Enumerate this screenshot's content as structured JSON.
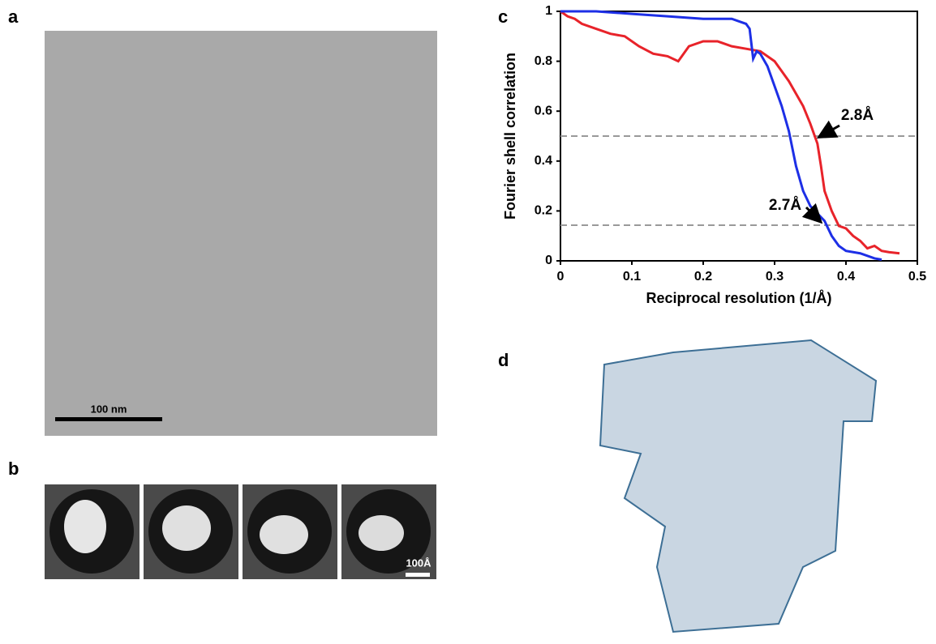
{
  "panels": {
    "a": {
      "label": "a",
      "scale_bar": "100 nm"
    },
    "b": {
      "label": "b",
      "scale_bar": "100Å"
    },
    "c": {
      "label": "c"
    },
    "d": {
      "label": "d"
    }
  },
  "chart_data": {
    "type": "line",
    "xlabel": "Reciprocal resolution (1/Å)",
    "ylabel": "Fourier shell correlation",
    "xlim": [
      0,
      0.5
    ],
    "ylim": [
      0,
      1
    ],
    "xticks": [
      0,
      0.1,
      0.2,
      0.3,
      0.4,
      0.5
    ],
    "yticks": [
      0,
      0.2,
      0.4,
      0.6,
      0.8,
      1
    ],
    "thresholds": [
      0.5,
      0.143
    ],
    "annotations": [
      "2.8Å",
      "2.7Å"
    ],
    "series": [
      {
        "color": "#e8232a",
        "x": [
          0,
          0.01,
          0.02,
          0.03,
          0.05,
          0.07,
          0.09,
          0.11,
          0.13,
          0.15,
          0.165,
          0.18,
          0.2,
          0.22,
          0.24,
          0.26,
          0.28,
          0.3,
          0.31,
          0.32,
          0.33,
          0.34,
          0.35,
          0.36,
          0.365,
          0.37,
          0.38,
          0.39,
          0.4,
          0.41,
          0.42,
          0.43,
          0.44,
          0.45,
          0.46,
          0.475
        ],
        "values": [
          1.0,
          0.98,
          0.97,
          0.95,
          0.93,
          0.91,
          0.9,
          0.86,
          0.83,
          0.82,
          0.8,
          0.86,
          0.88,
          0.88,
          0.86,
          0.85,
          0.84,
          0.8,
          0.76,
          0.72,
          0.67,
          0.62,
          0.55,
          0.47,
          0.38,
          0.28,
          0.2,
          0.14,
          0.13,
          0.1,
          0.08,
          0.05,
          0.06,
          0.04,
          0.035,
          0.03
        ]
      },
      {
        "color": "#1d2fe6",
        "x": [
          0,
          0.05,
          0.1,
          0.15,
          0.2,
          0.24,
          0.26,
          0.265,
          0.27,
          0.275,
          0.28,
          0.29,
          0.3,
          0.31,
          0.32,
          0.33,
          0.34,
          0.35,
          0.36,
          0.37,
          0.38,
          0.39,
          0.4,
          0.42,
          0.44,
          0.45
        ],
        "values": [
          1.0,
          1.0,
          0.99,
          0.98,
          0.97,
          0.97,
          0.95,
          0.93,
          0.81,
          0.84,
          0.83,
          0.78,
          0.7,
          0.62,
          0.52,
          0.38,
          0.28,
          0.22,
          0.19,
          0.16,
          0.1,
          0.06,
          0.04,
          0.03,
          0.01,
          0.005
        ]
      }
    ]
  }
}
